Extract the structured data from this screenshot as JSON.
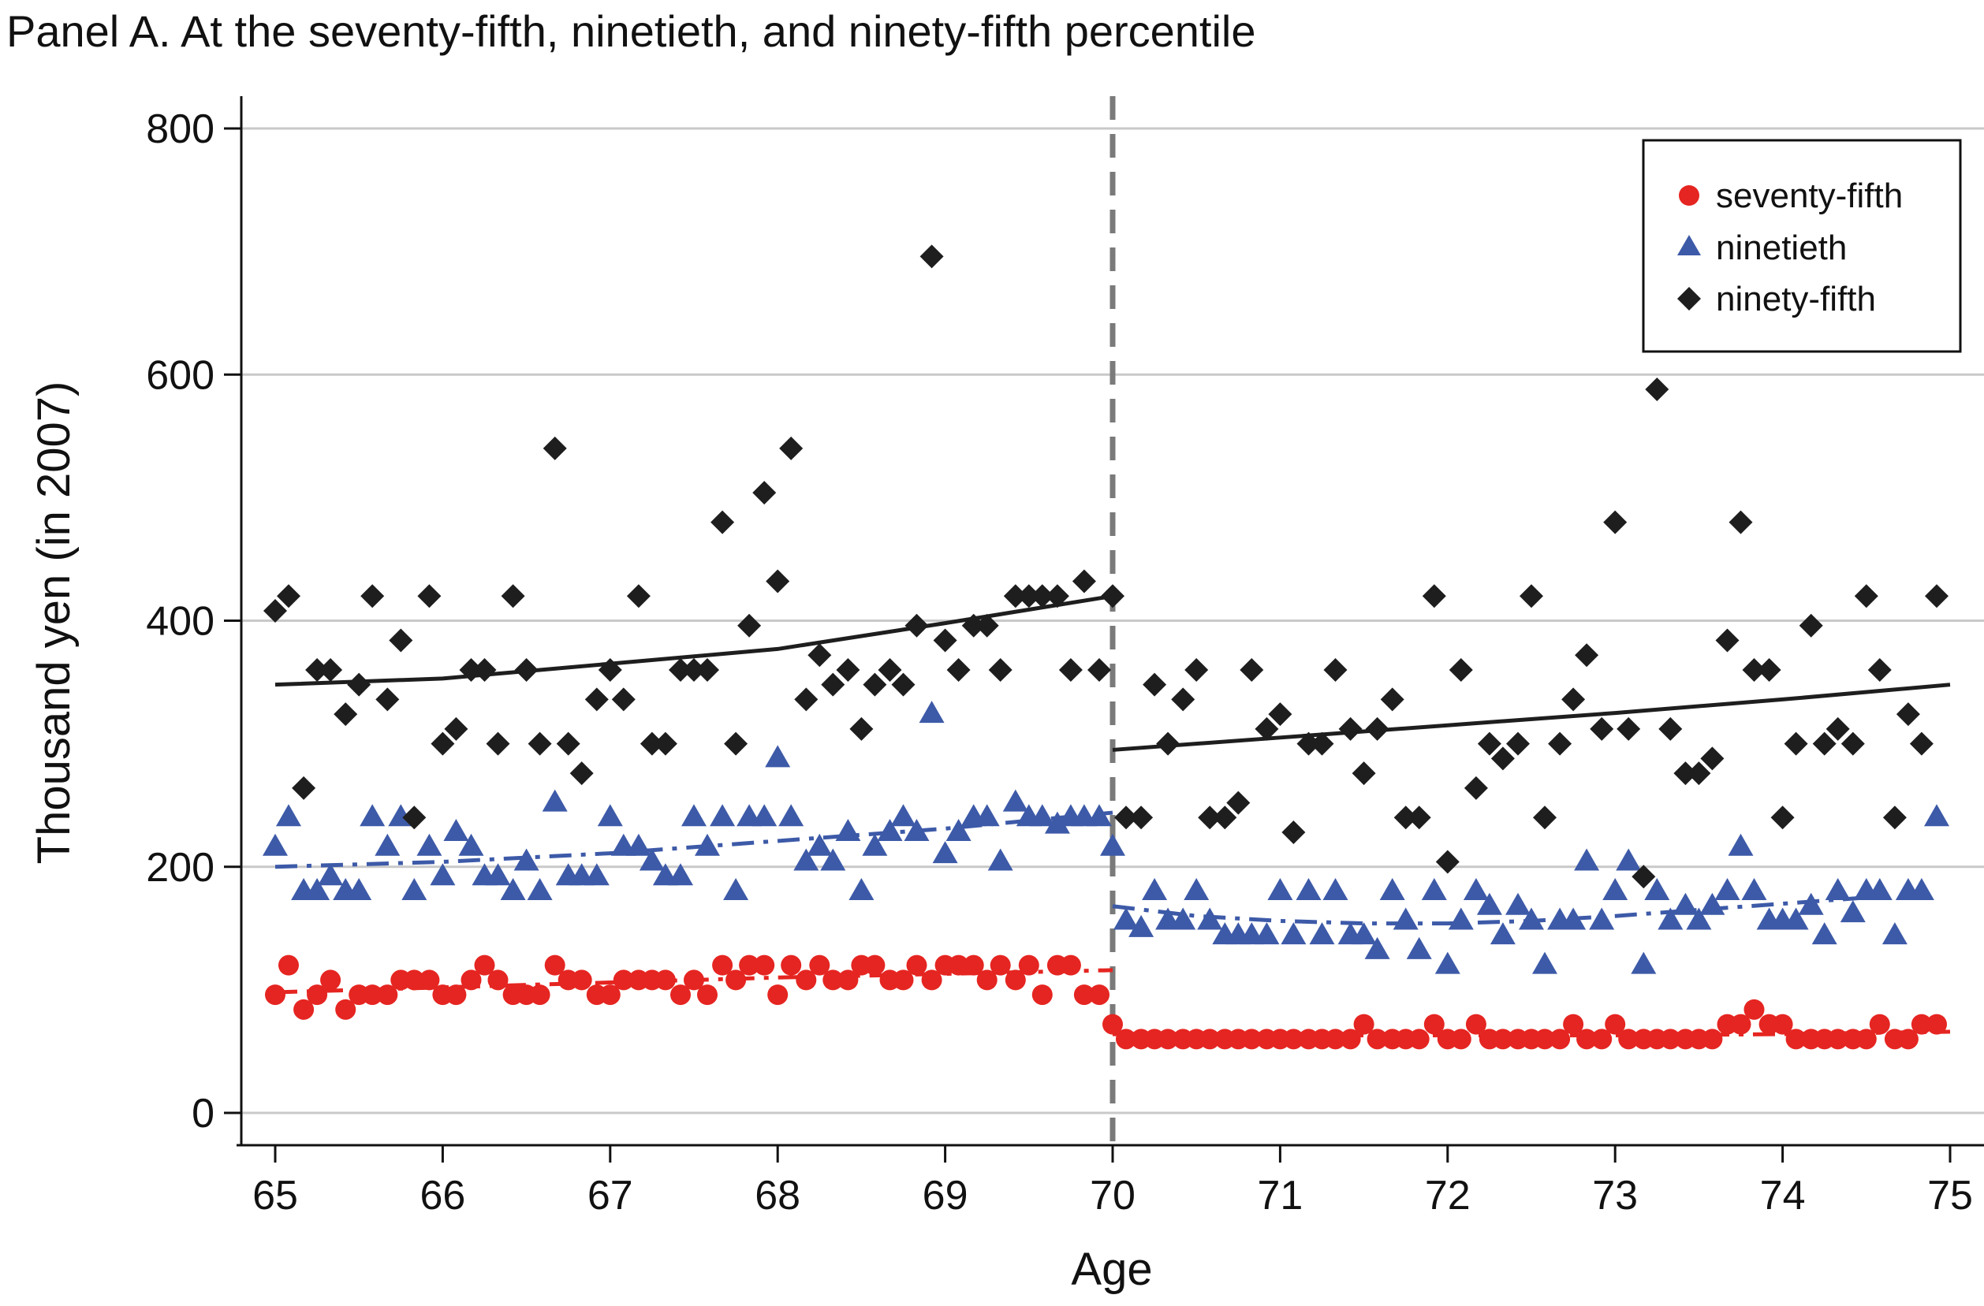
{
  "chart_data": {
    "type": "scatter",
    "title": "Panel A. At the seventy-fifth, ninetieth, and ninety-fifth percentile",
    "xlabel": "Age",
    "ylabel": "Thousand yen (in 2007)",
    "xlim": [
      65,
      75
    ],
    "ylim": [
      0,
      800
    ],
    "xticks": [
      "65",
      "66",
      "67",
      "68",
      "69",
      "70",
      "71",
      "72",
      "73",
      "74",
      "75"
    ],
    "yticks": [
      "0",
      "200",
      "400",
      "600",
      "800"
    ],
    "grid": "horizontal",
    "legend_position": "top-right",
    "cutoff_age": 70,
    "colors": {
      "seventy_fifth": "#e52521",
      "ninetieth": "#3d5aa8",
      "ninety_fifth": "#1e1e1e",
      "cutoff_line": "#7a7a7a"
    },
    "series": [
      {
        "name": "seventy-fifth",
        "marker": "circle",
        "x": [
          65.0,
          65.08,
          65.17,
          65.25,
          65.33,
          65.42,
          65.5,
          65.58,
          65.67,
          65.75,
          65.83,
          65.92,
          66.0,
          66.08,
          66.17,
          66.25,
          66.33,
          66.42,
          66.5,
          66.58,
          66.67,
          66.75,
          66.83,
          66.92,
          67.0,
          67.08,
          67.17,
          67.25,
          67.33,
          67.42,
          67.5,
          67.58,
          67.67,
          67.75,
          67.83,
          67.92,
          68.0,
          68.08,
          68.17,
          68.25,
          68.33,
          68.42,
          68.5,
          68.58,
          68.67,
          68.75,
          68.83,
          68.92,
          69.0,
          69.08,
          69.17,
          69.25,
          69.33,
          69.42,
          69.5,
          69.58,
          69.67,
          69.75,
          69.83,
          69.92,
          70.0,
          70.08,
          70.17,
          70.25,
          70.33,
          70.42,
          70.5,
          70.58,
          70.67,
          70.75,
          70.83,
          70.92,
          71.0,
          71.08,
          71.17,
          71.25,
          71.33,
          71.42,
          71.5,
          71.58,
          71.67,
          71.75,
          71.83,
          71.92,
          72.0,
          72.08,
          72.17,
          72.25,
          72.33,
          72.42,
          72.5,
          72.58,
          72.67,
          72.75,
          72.83,
          72.92,
          73.0,
          73.08,
          73.17,
          73.25,
          73.33,
          73.42,
          73.5,
          73.58,
          73.67,
          73.75,
          73.83,
          73.92,
          74.0,
          74.08,
          74.17,
          74.25,
          74.33,
          74.42,
          74.5,
          74.58,
          74.67,
          74.75,
          74.83,
          74.92
        ],
        "y": [
          96,
          120,
          84,
          96,
          108,
          84,
          96,
          96,
          96,
          108,
          108,
          108,
          96,
          96,
          108,
          120,
          108,
          96,
          96,
          96,
          120,
          108,
          108,
          96,
          96,
          108,
          108,
          108,
          108,
          96,
          108,
          96,
          120,
          108,
          120,
          120,
          96,
          120,
          108,
          120,
          108,
          108,
          120,
          120,
          108,
          108,
          120,
          108,
          120,
          120,
          120,
          108,
          120,
          108,
          120,
          96,
          120,
          120,
          96,
          96,
          72,
          60,
          60,
          60,
          60,
          60,
          60,
          60,
          60,
          60,
          60,
          60,
          60,
          60,
          60,
          60,
          60,
          60,
          72,
          60,
          60,
          60,
          60,
          72,
          60,
          60,
          72,
          60,
          60,
          60,
          60,
          60,
          60,
          72,
          60,
          60,
          72,
          60,
          60,
          60,
          60,
          60,
          60,
          60,
          72,
          72,
          84,
          72,
          72,
          60,
          60,
          60,
          60,
          60,
          60,
          72,
          60,
          60,
          72,
          72
        ]
      },
      {
        "name": "ninetieth",
        "marker": "triangle",
        "x": [
          65.0,
          65.08,
          65.17,
          65.25,
          65.33,
          65.42,
          65.5,
          65.58,
          65.67,
          65.75,
          65.83,
          65.92,
          66.0,
          66.08,
          66.17,
          66.25,
          66.33,
          66.42,
          66.5,
          66.58,
          66.67,
          66.75,
          66.83,
          66.92,
          67.0,
          67.08,
          67.17,
          67.25,
          67.33,
          67.42,
          67.5,
          67.58,
          67.67,
          67.75,
          67.83,
          67.92,
          68.0,
          68.08,
          68.17,
          68.25,
          68.33,
          68.42,
          68.5,
          68.58,
          68.67,
          68.75,
          68.83,
          68.92,
          69.0,
          69.08,
          69.17,
          69.25,
          69.33,
          69.42,
          69.5,
          69.58,
          69.67,
          69.75,
          69.83,
          69.92,
          70.0,
          70.08,
          70.17,
          70.25,
          70.33,
          70.42,
          70.5,
          70.58,
          70.67,
          70.75,
          70.83,
          70.92,
          71.0,
          71.08,
          71.17,
          71.25,
          71.33,
          71.42,
          71.5,
          71.58,
          71.67,
          71.75,
          71.83,
          71.92,
          72.0,
          72.08,
          72.17,
          72.25,
          72.33,
          72.42,
          72.5,
          72.58,
          72.67,
          72.75,
          72.83,
          72.92,
          73.0,
          73.08,
          73.17,
          73.25,
          73.33,
          73.42,
          73.5,
          73.58,
          73.67,
          73.75,
          73.83,
          73.92,
          74.0,
          74.08,
          74.17,
          74.25,
          74.33,
          74.42,
          74.5,
          74.58,
          74.67,
          74.75,
          74.83,
          74.92
        ],
        "y": [
          216,
          240,
          180,
          180,
          192,
          180,
          180,
          240,
          216,
          240,
          180,
          216,
          192,
          228,
          216,
          192,
          192,
          180,
          204,
          180,
          252,
          192,
          192,
          192,
          240,
          216,
          216,
          204,
          192,
          192,
          240,
          216,
          240,
          180,
          240,
          240,
          288,
          240,
          204,
          216,
          204,
          228,
          180,
          216,
          228,
          240,
          228,
          324,
          210,
          228,
          240,
          240,
          204,
          252,
          240,
          240,
          234,
          240,
          240,
          240,
          216,
          156,
          150,
          180,
          156,
          156,
          180,
          156,
          144,
          144,
          144,
          144,
          180,
          144,
          180,
          144,
          180,
          144,
          144,
          132,
          180,
          156,
          132,
          180,
          120,
          156,
          180,
          168,
          144,
          168,
          156,
          120,
          156,
          156,
          204,
          156,
          180,
          204,
          120,
          180,
          156,
          168,
          156,
          168,
          180,
          216,
          180,
          156,
          156,
          156,
          168,
          144,
          180,
          162,
          180,
          180,
          144,
          180,
          180,
          240
        ]
      },
      {
        "name": "ninety-fifth",
        "marker": "diamond",
        "x": [
          65.0,
          65.08,
          65.17,
          65.25,
          65.33,
          65.42,
          65.5,
          65.58,
          65.67,
          65.75,
          65.83,
          65.92,
          66.0,
          66.08,
          66.17,
          66.25,
          66.33,
          66.42,
          66.5,
          66.58,
          66.67,
          66.75,
          66.83,
          66.92,
          67.0,
          67.08,
          67.17,
          67.25,
          67.33,
          67.42,
          67.5,
          67.58,
          67.67,
          67.75,
          67.83,
          67.92,
          68.0,
          68.08,
          68.17,
          68.25,
          68.33,
          68.42,
          68.5,
          68.58,
          68.67,
          68.75,
          68.83,
          68.92,
          69.0,
          69.08,
          69.17,
          69.25,
          69.33,
          69.42,
          69.5,
          69.58,
          69.67,
          69.75,
          69.83,
          69.92,
          70.0,
          70.08,
          70.17,
          70.25,
          70.33,
          70.42,
          70.5,
          70.58,
          70.67,
          70.75,
          70.83,
          70.92,
          71.0,
          71.08,
          71.17,
          71.25,
          71.33,
          71.42,
          71.5,
          71.58,
          71.67,
          71.75,
          71.83,
          71.92,
          72.0,
          72.08,
          72.17,
          72.25,
          72.33,
          72.42,
          72.5,
          72.58,
          72.67,
          72.75,
          72.83,
          72.92,
          73.0,
          73.08,
          73.17,
          73.25,
          73.33,
          73.42,
          73.5,
          73.58,
          73.67,
          73.75,
          73.83,
          73.92,
          74.0,
          74.08,
          74.17,
          74.25,
          74.33,
          74.42,
          74.5,
          74.58,
          74.67,
          74.75,
          74.83,
          74.92
        ],
        "y": [
          408,
          420,
          264,
          360,
          360,
          324,
          348,
          420,
          336,
          384,
          240,
          420,
          300,
          312,
          360,
          360,
          300,
          420,
          360,
          300,
          540,
          300,
          276,
          336,
          360,
          336,
          420,
          300,
          300,
          360,
          360,
          360,
          480,
          300,
          396,
          504,
          432,
          540,
          336,
          372,
          348,
          360,
          312,
          348,
          360,
          348,
          396,
          696,
          384,
          360,
          396,
          396,
          360,
          420,
          420,
          420,
          420,
          360,
          432,
          360,
          420,
          240,
          240,
          348,
          300,
          336,
          360,
          240,
          240,
          252,
          360,
          312,
          324,
          228,
          300,
          300,
          360,
          312,
          276,
          312,
          336,
          240,
          240,
          420,
          204,
          360,
          264,
          300,
          288,
          300,
          420,
          240,
          300,
          336,
          372,
          312,
          480,
          312,
          192,
          588,
          312,
          276,
          276,
          288,
          384,
          480,
          360,
          360,
          240,
          300,
          396,
          300,
          312,
          300,
          420,
          360,
          240,
          324,
          300,
          420
        ]
      }
    ],
    "fitted_lines": [
      {
        "series": "ninety-fifth",
        "style": "solid",
        "segment": "left",
        "x": [
          65,
          66,
          67,
          68,
          69,
          70
        ],
        "y": [
          348,
          353,
          365,
          377,
          398,
          420
        ]
      },
      {
        "series": "ninety-fifth",
        "style": "solid",
        "segment": "right",
        "x": [
          70,
          71,
          72,
          73,
          74,
          75
        ],
        "y": [
          295,
          305,
          315,
          325,
          336,
          348
        ]
      },
      {
        "series": "ninetieth",
        "style": "dashed",
        "segment": "left",
        "x": [
          65,
          66,
          67,
          68,
          69,
          70
        ],
        "y": [
          200,
          204,
          211,
          221,
          231,
          244
        ]
      },
      {
        "series": "ninetieth",
        "style": "dashed",
        "segment": "right",
        "x": [
          70,
          70.5,
          71,
          71.5,
          72,
          72.5,
          73,
          73.5,
          74,
          74.5
        ],
        "y": [
          168,
          160,
          156,
          154,
          154,
          156,
          160,
          165,
          170,
          175
        ]
      },
      {
        "series": "seventy-fifth",
        "style": "dashed",
        "segment": "left",
        "x": [
          65,
          66,
          67,
          68,
          69,
          70
        ],
        "y": [
          98,
          102,
          106,
          110,
          113,
          116
        ]
      },
      {
        "series": "seventy-fifth",
        "style": "dashed",
        "segment": "right",
        "x": [
          70,
          71,
          72,
          73,
          74,
          75
        ],
        "y": [
          64,
          63,
          63,
          63,
          64,
          66
        ]
      }
    ]
  }
}
